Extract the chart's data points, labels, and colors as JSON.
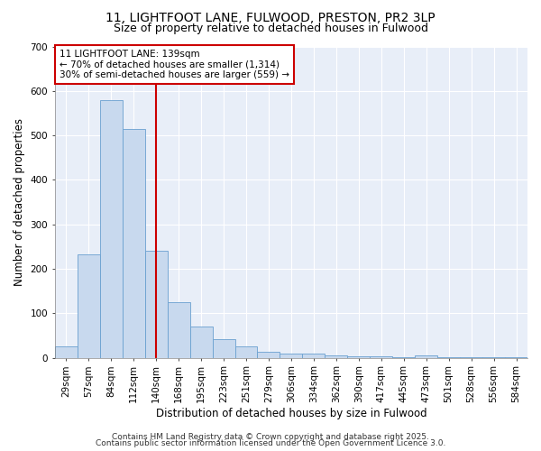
{
  "title1": "11, LIGHTFOOT LANE, FULWOOD, PRESTON, PR2 3LP",
  "title2": "Size of property relative to detached houses in Fulwood",
  "xlabel": "Distribution of detached houses by size in Fulwood",
  "ylabel": "Number of detached properties",
  "categories": [
    "29sqm",
    "57sqm",
    "84sqm",
    "112sqm",
    "140sqm",
    "168sqm",
    "195sqm",
    "223sqm",
    "251sqm",
    "279sqm",
    "306sqm",
    "334sqm",
    "362sqm",
    "390sqm",
    "417sqm",
    "445sqm",
    "473sqm",
    "501sqm",
    "528sqm",
    "556sqm",
    "584sqm"
  ],
  "values": [
    25,
    232,
    580,
    515,
    240,
    125,
    70,
    42,
    25,
    14,
    9,
    9,
    5,
    4,
    4,
    2,
    5,
    1,
    1,
    1,
    1
  ],
  "bar_color": "#c8d9ee",
  "bar_edge_color": "#6aa0d0",
  "reference_line_x": 4.5,
  "reference_line_color": "#cc0000",
  "annotation_text": "11 LIGHTFOOT LANE: 139sqm\n← 70% of detached houses are smaller (1,314)\n30% of semi-detached houses are larger (559) →",
  "annotation_box_color": "#ffffff",
  "annotation_box_edge": "#cc0000",
  "ylim": [
    0,
    700
  ],
  "yticks": [
    0,
    100,
    200,
    300,
    400,
    500,
    600,
    700
  ],
  "background_color": "#e8eef8",
  "footer1": "Contains HM Land Registry data © Crown copyright and database right 2025.",
  "footer2": "Contains public sector information licensed under the Open Government Licence 3.0.",
  "title_fontsize": 10,
  "subtitle_fontsize": 9,
  "axis_label_fontsize": 8.5,
  "tick_fontsize": 7.5,
  "annotation_fontsize": 7.5,
  "footer_fontsize": 6.5
}
